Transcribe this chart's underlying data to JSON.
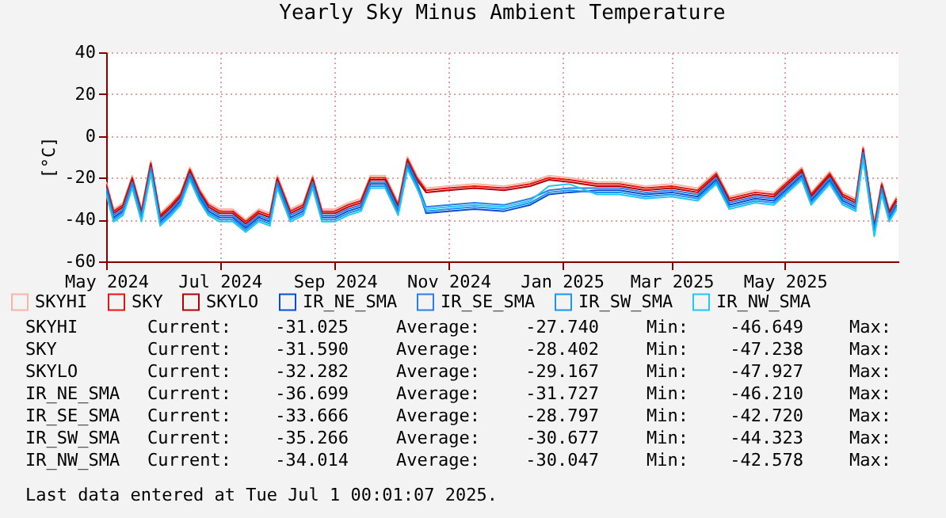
{
  "chart_data": {
    "type": "line",
    "title": "Yearly Sky Minus Ambient Temperature",
    "ylabel": "[°C]",
    "x": [
      "2024-05-01",
      "2024-05-05",
      "2024-05-10",
      "2024-05-15",
      "2024-05-20",
      "2024-05-25",
      "2024-05-30",
      "2024-06-05",
      "2024-06-10",
      "2024-06-15",
      "2024-06-20",
      "2024-06-25",
      "2024-07-01",
      "2024-07-08",
      "2024-07-15",
      "2024-07-22",
      "2024-07-28",
      "2024-08-01",
      "2024-08-08",
      "2024-08-15",
      "2024-08-20",
      "2024-08-25",
      "2024-09-01",
      "2024-09-08",
      "2024-09-15",
      "2024-09-20",
      "2024-09-28",
      "2024-10-05",
      "2024-10-10",
      "2024-10-15",
      "2024-10-20",
      "2024-11-01",
      "2024-11-15",
      "2024-12-01",
      "2024-12-15",
      "2024-12-25",
      "2025-01-05",
      "2025-01-20",
      "2025-02-01",
      "2025-02-15",
      "2025-03-01",
      "2025-03-15",
      "2025-03-25",
      "2025-04-01",
      "2025-04-15",
      "2025-04-25",
      "2025-05-10",
      "2025-05-15",
      "2025-05-25",
      "2025-06-01",
      "2025-06-08",
      "2025-06-12",
      "2025-06-18",
      "2025-06-22",
      "2025-06-26",
      "2025-06-30"
    ],
    "series": [
      {
        "name": "SKYHI",
        "color": "#f8b4a4",
        "values": [
          -22,
          -35,
          -32,
          -19,
          -35,
          -12,
          -37,
          -32,
          -27,
          -15,
          -25,
          -32,
          -35,
          -35,
          -40,
          -35,
          -37,
          -19,
          -35,
          -32,
          -19,
          -35,
          -35,
          -32,
          -30,
          -19,
          -19,
          -32,
          -10,
          -19,
          -25,
          -24,
          -23,
          -24,
          -22,
          -19,
          -20,
          -22,
          -22,
          -24,
          -23,
          -25,
          -17,
          -29,
          -26,
          -27,
          -15,
          -27,
          -17,
          -27,
          -30,
          -5,
          -42,
          -22,
          -35,
          -29
        ]
      },
      {
        "name": "SKY",
        "color": "#e8140c",
        "values": [
          -23,
          -36,
          -33,
          -20,
          -36,
          -13,
          -38,
          -33,
          -28,
          -16,
          -26,
          -33,
          -36,
          -36,
          -41,
          -36,
          -38,
          -20,
          -36,
          -33,
          -20,
          -36,
          -36,
          -33,
          -31,
          -20,
          -20,
          -33,
          -11,
          -20,
          -26,
          -25,
          -24,
          -25,
          -23,
          -20,
          -21,
          -23,
          -23,
          -25,
          -24,
          -26,
          -18,
          -30,
          -27,
          -28,
          -16,
          -28,
          -18,
          -28,
          -31,
          -6,
          -43,
          -23,
          -36,
          -30
        ]
      },
      {
        "name": "SKYLO",
        "color": "#b40000",
        "values": [
          -24,
          -37,
          -34,
          -21,
          -37,
          -14,
          -39,
          -34,
          -29,
          -17,
          -27,
          -34,
          -37,
          -37,
          -42,
          -37,
          -39,
          -21,
          -37,
          -34,
          -21,
          -37,
          -37,
          -34,
          -32,
          -21,
          -21,
          -34,
          -12,
          -21,
          -27,
          -26,
          -25,
          -26,
          -24,
          -21,
          -22,
          -24,
          -24,
          -26,
          -25,
          -27,
          -19,
          -31,
          -28,
          -29,
          -17,
          -29,
          -19,
          -29,
          -32,
          -7,
          -44,
          -24,
          -37,
          -31
        ]
      },
      {
        "name": "IR_NE_SMA",
        "color": "#0a4cd0",
        "values": [
          -26,
          -39,
          -36,
          -23,
          -39,
          -16,
          -41,
          -36,
          -31,
          -19,
          -29,
          -36,
          -39,
          -39,
          -44,
          -39,
          -41,
          -23,
          -39,
          -36,
          -23,
          -39,
          -39,
          -36,
          -34,
          -23,
          -23,
          -36,
          -14,
          -23,
          -37,
          -36,
          -35,
          -36,
          -33,
          -28,
          -27,
          -26,
          -26,
          -28,
          -27,
          -29,
          -21,
          -33,
          -30,
          -31,
          -19,
          -31,
          -21,
          -31,
          -34,
          -9,
          -46,
          -26,
          -39,
          -33
        ]
      },
      {
        "name": "IR_SE_SMA",
        "color": "#2a7ce6",
        "values": [
          -25,
          -38,
          -35,
          -22,
          -38,
          -15,
          -40,
          -35,
          -30,
          -18,
          -28,
          -35,
          -38,
          -38,
          -43,
          -38,
          -40,
          -22,
          -38,
          -35,
          -22,
          -38,
          -38,
          -35,
          -33,
          -22,
          -22,
          -35,
          -13,
          -22,
          -34,
          -33,
          -32,
          -33,
          -30,
          -26,
          -25,
          -25,
          -25,
          -27,
          -26,
          -28,
          -20,
          -32,
          -29,
          -30,
          -18,
          -30,
          -20,
          -30,
          -33,
          -8,
          -45,
          -25,
          -38,
          -32
        ]
      },
      {
        "name": "IR_SW_SMA",
        "color": "#1896ee",
        "values": [
          -27,
          -40,
          -37,
          -24,
          -40,
          -17,
          -42,
          -37,
          -32,
          -20,
          -30,
          -37,
          -40,
          -40,
          -45,
          -40,
          -42,
          -24,
          -40,
          -37,
          -24,
          -40,
          -40,
          -37,
          -35,
          -24,
          -24,
          -37,
          -15,
          -24,
          -36,
          -35,
          -34,
          -35,
          -32,
          -27,
          -26,
          -27,
          -27,
          -29,
          -28,
          -30,
          -22,
          -34,
          -31,
          -32,
          -20,
          -32,
          -22,
          -32,
          -35,
          -10,
          -47,
          -27,
          -40,
          -34
        ]
      },
      {
        "name": "IR_NW_SMA",
        "color": "#1ec8f2",
        "values": [
          -28,
          -41,
          -38,
          -25,
          -41,
          -18,
          -43,
          -38,
          -33,
          -21,
          -31,
          -38,
          -41,
          -41,
          -46,
          -41,
          -43,
          -25,
          -41,
          -38,
          -25,
          -41,
          -41,
          -38,
          -36,
          -25,
          -25,
          -38,
          -16,
          -25,
          -35,
          -34,
          -33,
          -34,
          -31,
          -24,
          -23,
          -28,
          -28,
          -30,
          -29,
          -31,
          -23,
          -35,
          -32,
          -33,
          -21,
          -33,
          -23,
          -33,
          -36,
          -11,
          -48,
          -28,
          -41,
          -35
        ]
      }
    ],
    "xlim": [
      "2024-05-01",
      "2025-07-01"
    ],
    "xticks": [
      {
        "value": "2024-05-01",
        "label": "May 2024"
      },
      {
        "value": "2024-07-01",
        "label": "Jul 2024"
      },
      {
        "value": "2024-09-01",
        "label": "Sep 2024"
      },
      {
        "value": "2024-11-01",
        "label": "Nov 2024"
      },
      {
        "value": "2025-01-01",
        "label": "Jan 2025"
      },
      {
        "value": "2025-03-01",
        "label": "Mar 2025"
      },
      {
        "value": "2025-05-01",
        "label": "May 2025"
      }
    ],
    "ylim": [
      -60,
      40
    ],
    "yticks": [
      -60,
      -40,
      -20,
      0,
      20,
      40
    ],
    "grid": true,
    "legend": "bottom",
    "line_style": "solid",
    "annotations": [
      "SKYHI",
      "Current:",
      "-31.025",
      "Average:",
      "-27.740",
      "Min:",
      "-46.649",
      "Max:",
      "SKY",
      "Current:",
      "-31.590",
      "Average:",
      "-28.402",
      "Min:",
      "-47.238",
      "Max:",
      "SKYLO",
      "Current:",
      "-32.282",
      "Average:",
      "-29.167",
      "Min:",
      "-47.927",
      "Max:",
      "IR_NE_SMA",
      "Current:",
      "-36.699",
      "Average:",
      "-31.727",
      "Min:",
      "-46.210",
      "Max:",
      "IR_SE_SMA",
      "Current:",
      "-33.666",
      "Average:",
      "-28.797",
      "Min:",
      "-42.720",
      "Max:",
      "IR_SW_SMA",
      "Current:",
      "-35.266",
      "Average:",
      "-30.677",
      "Min:",
      "-44.323",
      "Max:",
      "IR_NW_SMA",
      "Current:",
      "-34.014",
      "Average:",
      "-30.047",
      "Min:",
      "-42.578",
      "Max:",
      "Last data entered at Tue Jul  1 00:01:07 2025."
    ]
  }
}
